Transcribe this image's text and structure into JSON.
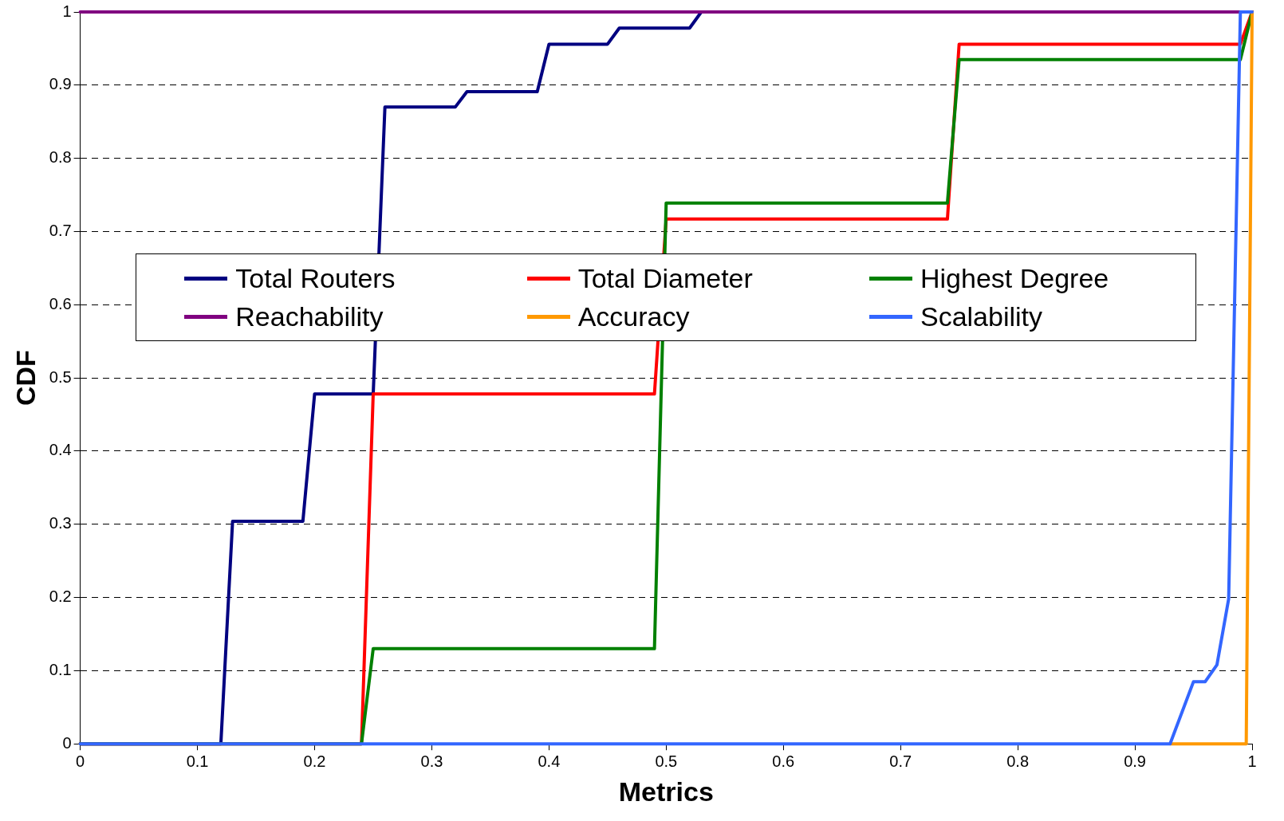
{
  "chart_data": {
    "type": "line",
    "xlabel": "Metrics",
    "ylabel": "CDF",
    "xlim": [
      0,
      1
    ],
    "ylim": [
      0,
      1
    ],
    "xticks": [
      0,
      0.1,
      0.2,
      0.3,
      0.4,
      0.5,
      0.6,
      0.7,
      0.8,
      0.9,
      1
    ],
    "yticks": [
      0,
      0.1,
      0.2,
      0.3,
      0.4,
      0.5,
      0.6,
      0.7,
      0.8,
      0.9,
      1
    ],
    "grid": "y",
    "legend": "center",
    "marker": "none",
    "line_style": "solid",
    "series": [
      {
        "name": "Total Routers",
        "color": "#000080",
        "x": [
          0,
          0.12,
          0.13,
          0.19,
          0.2,
          0.25,
          0.26,
          0.32,
          0.33,
          0.39,
          0.4,
          0.45,
          0.46,
          0.52,
          0.53,
          1
        ],
        "values": [
          0,
          0,
          0.304,
          0.304,
          0.478,
          0.478,
          0.87,
          0.87,
          0.891,
          0.891,
          0.956,
          0.956,
          0.978,
          0.978,
          1,
          1
        ]
      },
      {
        "name": "Total Diameter",
        "color": "#ff0000",
        "x": [
          0,
          0.24,
          0.25,
          0.49,
          0.5,
          0.74,
          0.75,
          0.99,
          1
        ],
        "values": [
          0,
          0,
          0.478,
          0.478,
          0.717,
          0.717,
          0.956,
          0.956,
          1
        ]
      },
      {
        "name": "Highest Degree",
        "color": "#008000",
        "x": [
          0,
          0.24,
          0.25,
          0.49,
          0.5,
          0.74,
          0.75,
          0.99,
          1
        ],
        "values": [
          0,
          0,
          0.13,
          0.13,
          0.739,
          0.739,
          0.935,
          0.935,
          1
        ]
      },
      {
        "name": "Reachability",
        "color": "#800080",
        "x": [
          0,
          1
        ],
        "values": [
          1,
          1
        ]
      },
      {
        "name": "Accuracy",
        "color": "#ff9900",
        "x": [
          0.93,
          0.995,
          1
        ],
        "values": [
          0,
          0,
          1
        ]
      },
      {
        "name": "Scalability",
        "color": "#3366ff",
        "x": [
          0,
          0.93,
          0.95,
          0.96,
          0.97,
          0.98,
          0.99,
          1
        ],
        "values": [
          0,
          0,
          0.085,
          0.085,
          0.108,
          0.198,
          1,
          1
        ]
      }
    ]
  }
}
